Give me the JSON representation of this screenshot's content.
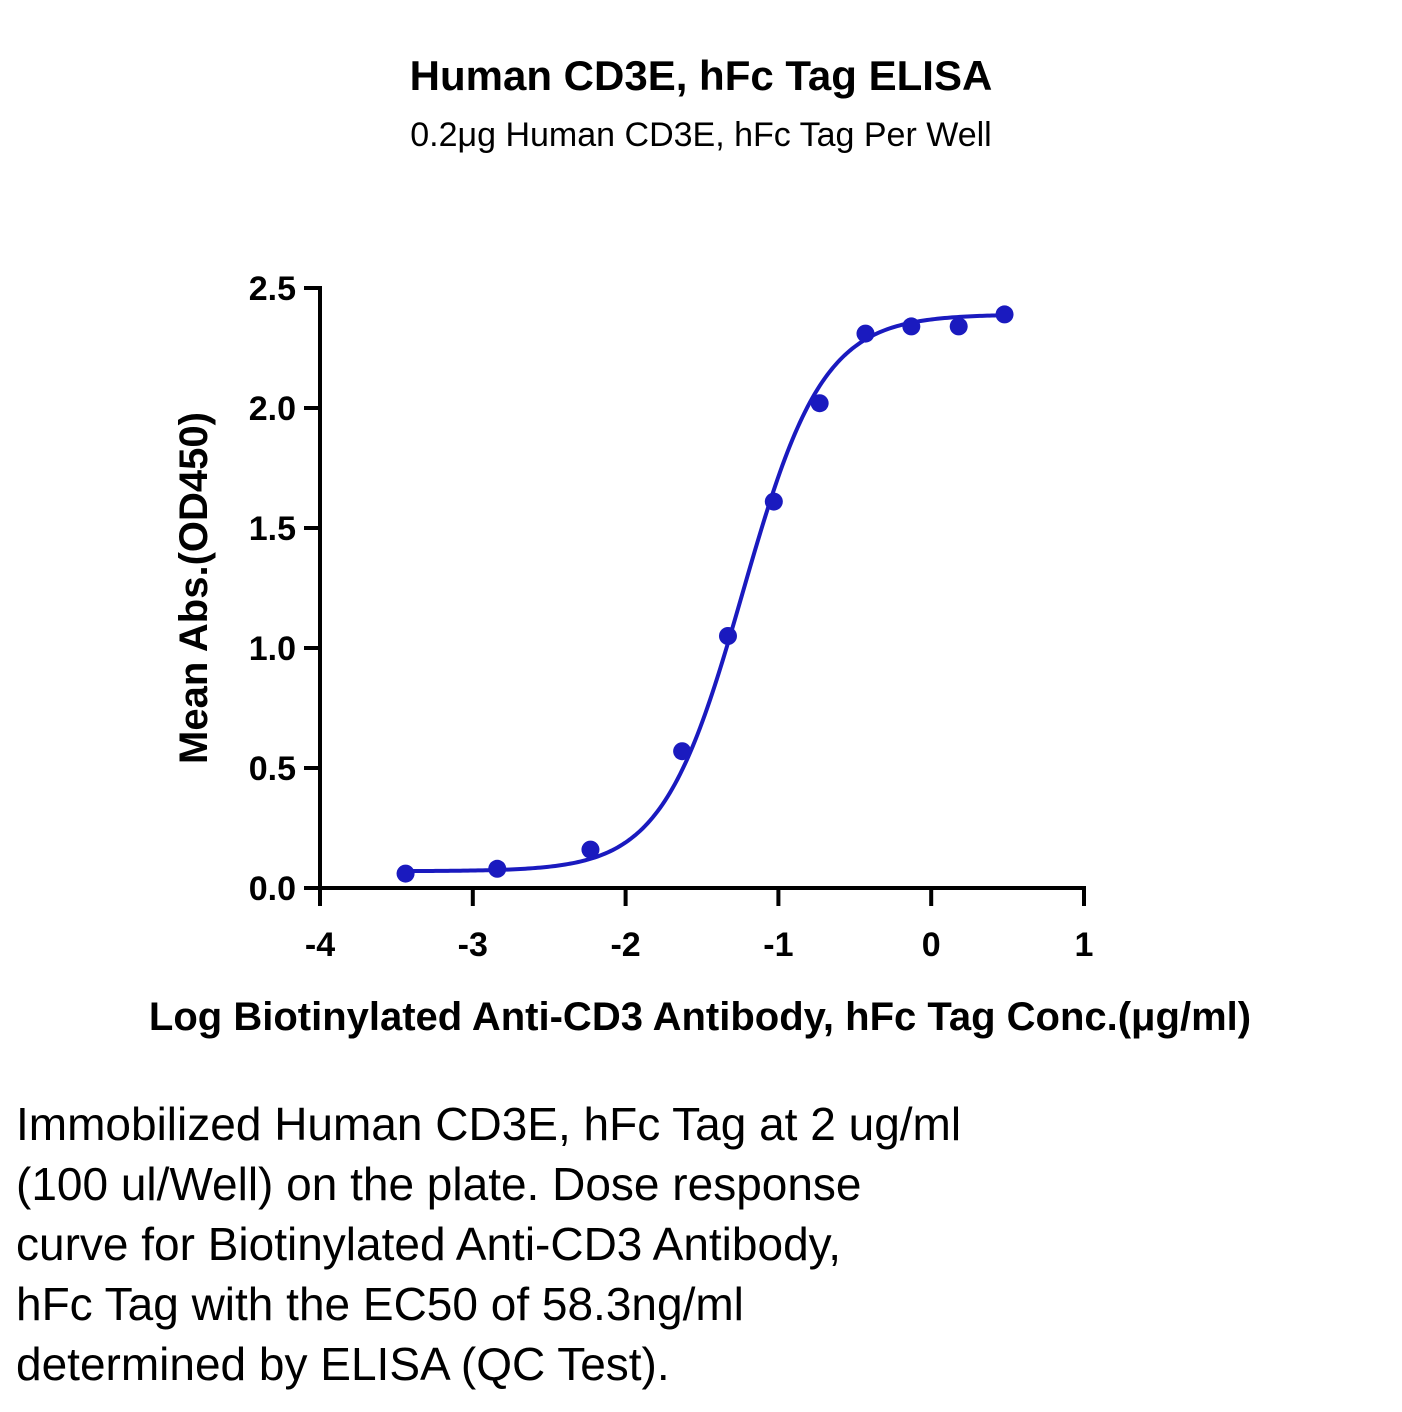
{
  "chart_data": {
    "type": "scatter",
    "title": "Human CD3E, hFc Tag ELISA",
    "subtitle": "0.2μg Human CD3E, hFc Tag Per Well",
    "xlabel": "Log Biotinylated Anti-CD3 Antibody, hFc Tag Conc.(μg/ml)",
    "ylabel": "Mean Abs.(OD450)",
    "xlim": [
      -4,
      1
    ],
    "ylim": [
      0,
      2.5
    ],
    "xticks": [
      -4,
      -3,
      -2,
      -1,
      0,
      1
    ],
    "xtick_labels": [
      "-4",
      "-3",
      "-2",
      "-1",
      "0",
      "1"
    ],
    "yticks": [
      0,
      0.5,
      1,
      1.5,
      2,
      2.5
    ],
    "ytick_labels": [
      "0.0",
      "0.5",
      "1.0",
      "1.5",
      "2.0",
      "2.5"
    ],
    "grid": false,
    "legend": "none",
    "color": "#1a1abf",
    "series": [
      {
        "x": [
          -3.44,
          -2.84,
          -2.23,
          -1.63,
          -1.33,
          -1.03,
          -0.73,
          -0.43,
          -0.13,
          0.18,
          0.48
        ],
        "y": [
          0.06,
          0.08,
          0.16,
          0.57,
          1.05,
          1.61,
          2.02,
          2.31,
          2.34,
          2.34,
          2.39
        ],
        "fit": "4PL"
      }
    ]
  },
  "caption": "Immobilized Human CD3E, hFc Tag at 2 ug/ml\n(100 ul/Well) on the plate. Dose response\ncurve for Biotinylated Anti-CD3 Antibody,\nhFc Tag with the EC50 of 58.3ng/ml\ndetermined by ELISA (QC Test)."
}
